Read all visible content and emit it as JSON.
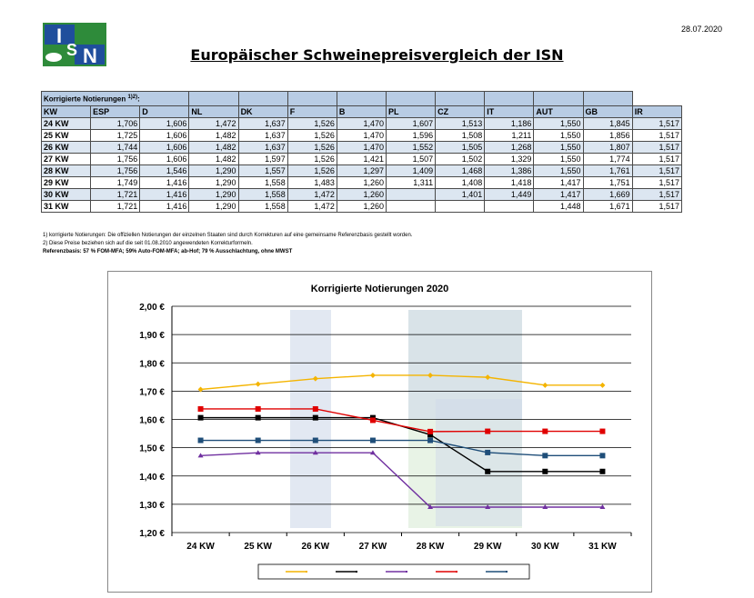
{
  "header": {
    "logo_text": "ISN",
    "date": "28.07.2020",
    "title": "Europäischer Schweinepreisvergleich der ISN"
  },
  "table": {
    "caption": "Korrigierte Notierungen",
    "caption_sup": "1)2)",
    "caption_suffix": ":",
    "columns": [
      "KW",
      "ESP",
      "D",
      "NL",
      "DK",
      "F",
      "B",
      "PL",
      "CZ",
      "IT",
      "AUT",
      "GB",
      "IR"
    ],
    "rows": [
      [
        "24 KW",
        "1,706",
        "1,606",
        "1,472",
        "1,637",
        "1,526",
        "1,470",
        "1,607",
        "1,513",
        "1,186",
        "1,550",
        "1,845",
        "1,517"
      ],
      [
        "25 KW",
        "1,725",
        "1,606",
        "1,482",
        "1,637",
        "1,526",
        "1,470",
        "1,596",
        "1,508",
        "1,211",
        "1,550",
        "1,856",
        "1,517"
      ],
      [
        "26 KW",
        "1,744",
        "1,606",
        "1,482",
        "1,637",
        "1,526",
        "1,470",
        "1,552",
        "1,505",
        "1,268",
        "1,550",
        "1,807",
        "1,517"
      ],
      [
        "27 KW",
        "1,756",
        "1,606",
        "1,482",
        "1,597",
        "1,526",
        "1,421",
        "1,507",
        "1,502",
        "1,329",
        "1,550",
        "1,774",
        "1,517"
      ],
      [
        "28 KW",
        "1,756",
        "1,546",
        "1,290",
        "1,557",
        "1,526",
        "1,297",
        "1,409",
        "1,468",
        "1,386",
        "1,550",
        "1,761",
        "1,517"
      ],
      [
        "29 KW",
        "1,749",
        "1,416",
        "1,290",
        "1,558",
        "1,483",
        "1,260",
        "1,311",
        "1,408",
        "1,418",
        "1,417",
        "1,751",
        "1,517"
      ],
      [
        "30 KW",
        "1,721",
        "1,416",
        "1,290",
        "1,558",
        "1,472",
        "1,260",
        "",
        "1,401",
        "1,449",
        "1,417",
        "1,669",
        "1,517"
      ],
      [
        "31 KW",
        "1,721",
        "1,416",
        "1,290",
        "1,558",
        "1,472",
        "1,260",
        "",
        "",
        "",
        "1,448",
        "1,671",
        "1,517"
      ]
    ]
  },
  "notes": {
    "line1": "1) korrigierte Notierungen: Die offiziellen Notierungen der einzelnen Staaten sind durch Korrekturen auf eine gemeinsame Referenzbasis gestellt worden.",
    "line2": "2) Diese Preise beziehen sich auf die seit 01.08.2010 angewendeten Korrekturformeln.",
    "line3": "Referenzbasis: 57 % FOM-MFA; 59% Auto-FOM-MFA; ab-Hof; 79 % Ausschlachtung, ohne MWST"
  },
  "chart_data": {
    "type": "line",
    "title": "Korrigierte Notierungen 2020",
    "x": [
      "24 KW",
      "25 KW",
      "26 KW",
      "27 KW",
      "28 KW",
      "29 KW",
      "30 KW",
      "31 KW"
    ],
    "ylim": [
      1.2,
      2.0
    ],
    "yticks": [
      "1,20 €",
      "1,30 €",
      "1,40 €",
      "1,50 €",
      "1,60 €",
      "1,70 €",
      "1,80 €",
      "1,90 €",
      "2,00 €"
    ],
    "grid": true,
    "legend_position": "bottom",
    "series": [
      {
        "color": "#f4b400",
        "marker": "diamond",
        "values": [
          1.706,
          1.725,
          1.744,
          1.756,
          1.756,
          1.749,
          1.721,
          1.721
        ]
      },
      {
        "color": "#000000",
        "marker": "square",
        "values": [
          1.606,
          1.606,
          1.606,
          1.606,
          1.546,
          1.416,
          1.416,
          1.416
        ]
      },
      {
        "color": "#7030a0",
        "marker": "triangle",
        "values": [
          1.472,
          1.482,
          1.482,
          1.482,
          1.29,
          1.29,
          1.29,
          1.29
        ]
      },
      {
        "color": "#e00000",
        "marker": "square",
        "values": [
          1.637,
          1.637,
          1.637,
          1.597,
          1.557,
          1.558,
          1.558,
          1.558
        ]
      },
      {
        "color": "#1f4e79",
        "marker": "square",
        "values": [
          1.526,
          1.526,
          1.526,
          1.526,
          1.526,
          1.483,
          1.472,
          1.472
        ]
      }
    ]
  },
  "colors": {
    "table_header": "#b8cce4",
    "table_row_alt": "#dce6f1",
    "logo_green": "#2e8b3a",
    "logo_blue": "#1f4e9c",
    "watermark_blue": "#cfd9ea",
    "watermark_green": "#d8ebd5"
  }
}
